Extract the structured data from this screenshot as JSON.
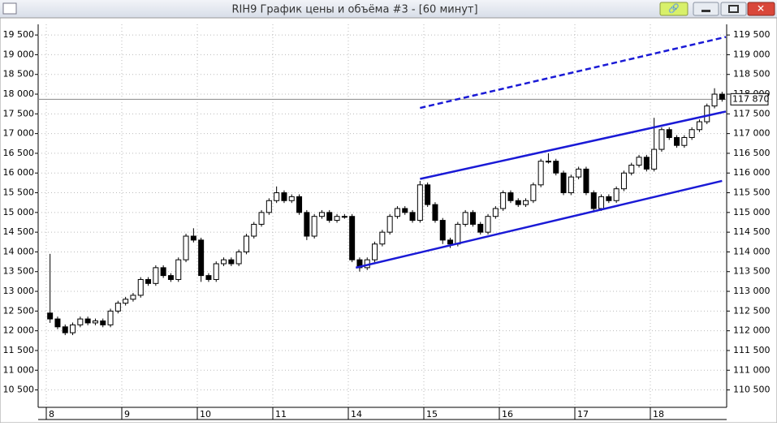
{
  "window_title": "RIH9 График цены и объёма #3 - [60 минут]",
  "chart_data": {
    "type": "candlestick",
    "x_labels": [
      "8",
      "9",
      "10",
      "11",
      "14",
      "15",
      "16",
      "17",
      "18"
    ],
    "candles_per_label": 10,
    "open": [
      112450,
      112300,
      112100,
      111950,
      112150,
      112300,
      112200,
      112250,
      112150,
      112500,
      112700,
      112800,
      112900,
      113300,
      113200,
      113600,
      113400,
      113300,
      113800,
      114400,
      114300,
      113400,
      113300,
      113700,
      113800,
      113700,
      114000,
      114400,
      114700,
      115000,
      115300,
      115500,
      115300,
      115400,
      115000,
      114400,
      114900,
      115000,
      114800,
      114900,
      114900,
      113800,
      113600,
      113800,
      114200,
      114500,
      114900,
      115100,
      115000,
      114800,
      115700,
      115200,
      114800,
      114300,
      114200,
      114700,
      115000,
      114700,
      114500,
      114900,
      115100,
      115500,
      115300,
      115200,
      115300,
      115700,
      116300,
      116300,
      116000,
      115500,
      115900,
      116100,
      115500,
      115100,
      115400,
      115300,
      115600,
      116000,
      116200,
      116400,
      116100,
      116600,
      117100,
      116900,
      116700,
      116900,
      117100,
      117300,
      117700,
      118000
    ],
    "high": [
      113950,
      112360,
      112160,
      112210,
      112360,
      112360,
      112310,
      112310,
      112560,
      112760,
      112860,
      112960,
      113360,
      113360,
      113660,
      113660,
      113460,
      113860,
      114460,
      114600,
      114360,
      113460,
      113760,
      113860,
      113860,
      114060,
      114460,
      114760,
      115060,
      115360,
      115660,
      115560,
      115460,
      115460,
      115060,
      114960,
      115060,
      115060,
      114960,
      114960,
      114960,
      113860,
      113860,
      114260,
      114560,
      114960,
      115160,
      115160,
      115060,
      115800,
      115760,
      115260,
      114860,
      114360,
      114760,
      115060,
      115060,
      114760,
      114960,
      115160,
      115560,
      115560,
      115360,
      115360,
      115760,
      116360,
      116500,
      116360,
      116060,
      115960,
      116160,
      116160,
      115560,
      115460,
      115460,
      115660,
      116060,
      116260,
      116460,
      116460,
      117400,
      117160,
      117160,
      116960,
      116960,
      117160,
      117360,
      117760,
      118150,
      118060
    ],
    "low": [
      112200,
      112040,
      111890,
      111890,
      112090,
      112140,
      112140,
      112090,
      112090,
      112440,
      112640,
      112740,
      112840,
      113140,
      113140,
      113340,
      113240,
      113240,
      113740,
      114240,
      113240,
      113240,
      113240,
      113640,
      113640,
      113640,
      113940,
      114340,
      114640,
      114940,
      115240,
      115240,
      115240,
      114940,
      114300,
      114340,
      114840,
      114740,
      114740,
      114840,
      113740,
      113500,
      113540,
      113740,
      114140,
      114440,
      114840,
      114940,
      114740,
      114740,
      115140,
      114740,
      114200,
      114100,
      114140,
      114640,
      114640,
      114440,
      114440,
      114840,
      115040,
      115240,
      115140,
      115140,
      115240,
      115640,
      116240,
      115940,
      115440,
      115440,
      115840,
      115440,
      115040,
      115040,
      115240,
      115240,
      115540,
      115940,
      116140,
      116040,
      116040,
      116540,
      116840,
      116640,
      116640,
      116840,
      117040,
      117240,
      117640,
      117810
    ],
    "close": [
      112300,
      112100,
      111950,
      112150,
      112300,
      112200,
      112250,
      112150,
      112500,
      112700,
      112800,
      112900,
      113300,
      113200,
      113600,
      113400,
      113300,
      113800,
      114400,
      114300,
      113400,
      113300,
      113700,
      113800,
      113700,
      114000,
      114400,
      114700,
      115000,
      115300,
      115500,
      115300,
      115400,
      115000,
      114400,
      114900,
      115000,
      114800,
      114900,
      114900,
      113800,
      113600,
      113800,
      114200,
      114500,
      114900,
      115100,
      115000,
      114800,
      115700,
      115200,
      114800,
      114300,
      114200,
      114700,
      115000,
      114700,
      114500,
      114900,
      115100,
      115500,
      115300,
      115200,
      115300,
      115700,
      116300,
      116300,
      116000,
      115500,
      115900,
      116100,
      115500,
      115100,
      115400,
      115300,
      115600,
      116000,
      116200,
      116400,
      116100,
      116600,
      117100,
      116900,
      116700,
      116900,
      117100,
      117300,
      117700,
      118000,
      117870
    ],
    "ylim": [
      10100,
      19770
    ],
    "yticks": [
      {
        "value": 10500,
        "label": "10 500"
      },
      {
        "value": 11000,
        "label": "11 000"
      },
      {
        "value": 11500,
        "label": "11 500"
      },
      {
        "value": 12000,
        "label": "12 000"
      },
      {
        "value": 12500,
        "label": "12 500"
      },
      {
        "value": 13000,
        "label": "13 000"
      },
      {
        "value": 13500,
        "label": "13 500"
      },
      {
        "value": 14000,
        "label": "14 000"
      },
      {
        "value": 14500,
        "label": "14 500"
      },
      {
        "value": 15000,
        "label": "15 000"
      },
      {
        "value": 15500,
        "label": "15 500"
      },
      {
        "value": 16000,
        "label": "16 000"
      },
      {
        "value": 16500,
        "label": "16 500"
      },
      {
        "value": 17000,
        "label": "17 000"
      },
      {
        "value": 17500,
        "label": "17 500"
      },
      {
        "value": 18000,
        "label": "18 000"
      },
      {
        "value": 18500,
        "label": "18 500"
      },
      {
        "value": 19000,
        "label": "19 000"
      },
      {
        "value": 19500,
        "label": "19 500"
      }
    ],
    "y2lim": [
      110100,
      119770
    ],
    "y2ticks": [
      {
        "value": 110500,
        "label": "110 500"
      },
      {
        "value": 111000,
        "label": "111 000"
      },
      {
        "value": 111500,
        "label": "111 500"
      },
      {
        "value": 112000,
        "label": "112 000"
      },
      {
        "value": 112500,
        "label": "112 500"
      },
      {
        "value": 113000,
        "label": "113 000"
      },
      {
        "value": 113500,
        "label": "113 500"
      },
      {
        "value": 114000,
        "label": "114 000"
      },
      {
        "value": 114500,
        "label": "114 500"
      },
      {
        "value": 115000,
        "label": "115 000"
      },
      {
        "value": 115500,
        "label": "115 500"
      },
      {
        "value": 116000,
        "label": "116 000"
      },
      {
        "value": 116500,
        "label": "116 500"
      },
      {
        "value": 117000,
        "label": "117 000"
      },
      {
        "value": 117500,
        "label": "117 500"
      },
      {
        "value": 118000,
        "label": "118 000"
      },
      {
        "value": 118500,
        "label": "118 500"
      },
      {
        "value": 119000,
        "label": "119 000"
      },
      {
        "value": 119500,
        "label": "119 500"
      }
    ],
    "last_price": {
      "value": 117870,
      "label": "117 870"
    },
    "trendlines": [
      {
        "style": "solid",
        "color": "#1a1ad6",
        "points": [
          [
            40.5,
            113600
          ],
          [
            89,
            115800
          ]
        ]
      },
      {
        "style": "solid",
        "color": "#1a1ad6",
        "points": [
          [
            49,
            115850
          ],
          [
            89.5,
            117560
          ]
        ]
      },
      {
        "style": "dashed",
        "color": "#1a1ad6",
        "points": [
          [
            49,
            117650
          ],
          [
            89.5,
            119450
          ]
        ]
      }
    ],
    "grid": true
  }
}
